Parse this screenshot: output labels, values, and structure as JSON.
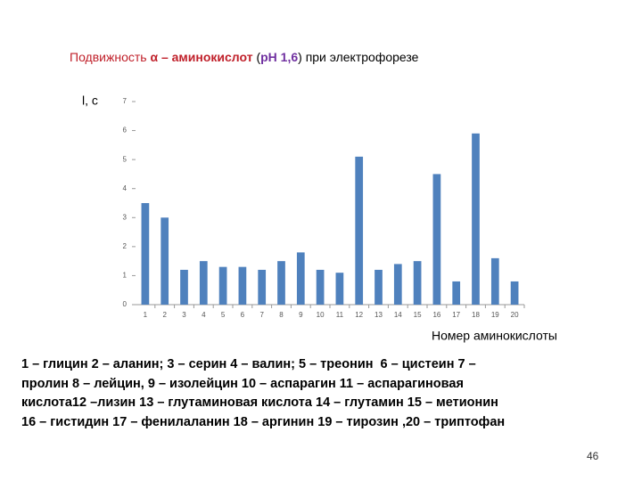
{
  "chart_data": {
    "type": "bar",
    "title_parts": [
      "Подвижность ",
      "α – аминокислот",
      " (",
      "pH 1,6",
      ") при электрофорезе"
    ],
    "y_label": "l, c",
    "x_label": "Номер аминокислоты",
    "categories": [
      "1",
      "2",
      "3",
      "4",
      "5",
      "6",
      "7",
      "8",
      "9",
      "10",
      "11",
      "12",
      "13",
      "14",
      "15",
      "16",
      "17",
      "18",
      "19",
      "20"
    ],
    "values": [
      3.5,
      3.0,
      1.2,
      1.5,
      1.3,
      1.3,
      1.2,
      1.5,
      1.8,
      1.2,
      1.1,
      5.1,
      1.2,
      1.4,
      1.5,
      4.5,
      0.8,
      5.9,
      1.6,
      0.8
    ],
    "color": "#4f81bd",
    "ylim": [
      0,
      7
    ],
    "yticks": [
      0,
      1,
      2,
      3,
      4,
      5,
      6,
      7
    ],
    "grid": false
  },
  "legend_lines": [
    "1 – глицин 2 – аланин; 3 – серин 4 – валин; 5 – треонин  6 – цистеин 7 –",
    "пролин 8 – лейцин, 9 – изолейцин 10 – аспарагин 11 – аспарагиновая",
    "кислота12 –лизин 13 – глутаминовая кислота 14 – глутамин 15 – метионин",
    "16 – гистидин 17 – фенилаланин 18 – аргинин 19 – тирозин ,20 – триптофан"
  ],
  "page_number": "46"
}
